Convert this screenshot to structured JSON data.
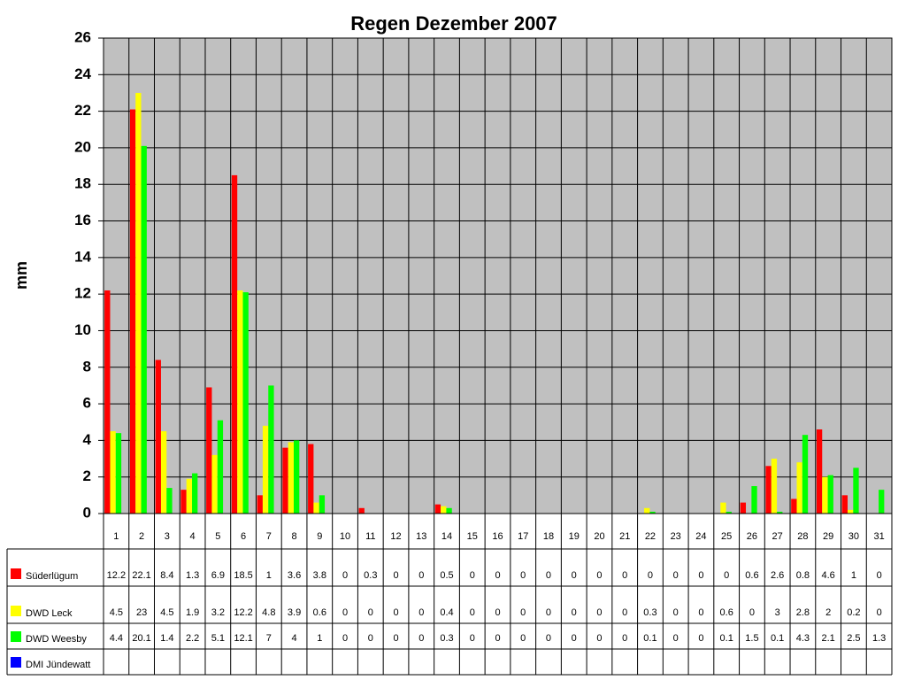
{
  "chart_data": {
    "type": "bar",
    "title": "Regen Dezember 2007",
    "y_label": "mm",
    "categories": [
      "1",
      "2",
      "3",
      "4",
      "5",
      "6",
      "7",
      "8",
      "9",
      "10",
      "11",
      "12",
      "13",
      "14",
      "15",
      "16",
      "17",
      "18",
      "19",
      "20",
      "21",
      "22",
      "23",
      "24",
      "25",
      "26",
      "27",
      "28",
      "29",
      "30",
      "31"
    ],
    "series": [
      {
        "name": "Süderlügum",
        "color": "#ff0000",
        "values": [
          12.2,
          22.1,
          8.4,
          1.3,
          6.9,
          18.5,
          1,
          3.6,
          3.8,
          0,
          0.3,
          0,
          0,
          0.5,
          0,
          0,
          0,
          0,
          0,
          0,
          0,
          0,
          0,
          0,
          0,
          0.6,
          2.6,
          0.8,
          4.6,
          1,
          0
        ]
      },
      {
        "name": "DWD Leck",
        "color": "#ffff00",
        "values": [
          4.5,
          23,
          4.5,
          1.9,
          3.2,
          12.2,
          4.8,
          3.9,
          0.6,
          0,
          0,
          0,
          0,
          0.4,
          0,
          0,
          0,
          0,
          0,
          0,
          0,
          0.3,
          0,
          0,
          0.6,
          0,
          3,
          2.8,
          2,
          0.2,
          0
        ]
      },
      {
        "name": "DWD Weesby",
        "color": "#00ff00",
        "values": [
          4.4,
          20.1,
          1.4,
          2.2,
          5.1,
          12.1,
          7,
          4,
          1,
          0,
          0,
          0,
          0,
          0.3,
          0,
          0,
          0,
          0,
          0,
          0,
          0,
          0.1,
          0,
          0,
          0.1,
          1.5,
          0.1,
          4.3,
          2.1,
          2.5,
          1.3
        ]
      },
      {
        "name": "DMI Jündewatt",
        "color": "#0000ff",
        "values": [
          null,
          null,
          null,
          null,
          null,
          null,
          null,
          null,
          null,
          null,
          null,
          null,
          null,
          null,
          null,
          null,
          null,
          null,
          null,
          null,
          null,
          null,
          null,
          null,
          null,
          null,
          null,
          null,
          null,
          null,
          null
        ]
      }
    ],
    "ylim": [
      0,
      26
    ],
    "yticks": [
      0,
      2,
      4,
      6,
      8,
      10,
      12,
      14,
      16,
      18,
      20,
      22,
      24,
      26
    ],
    "grid": true,
    "data_table": true
  }
}
